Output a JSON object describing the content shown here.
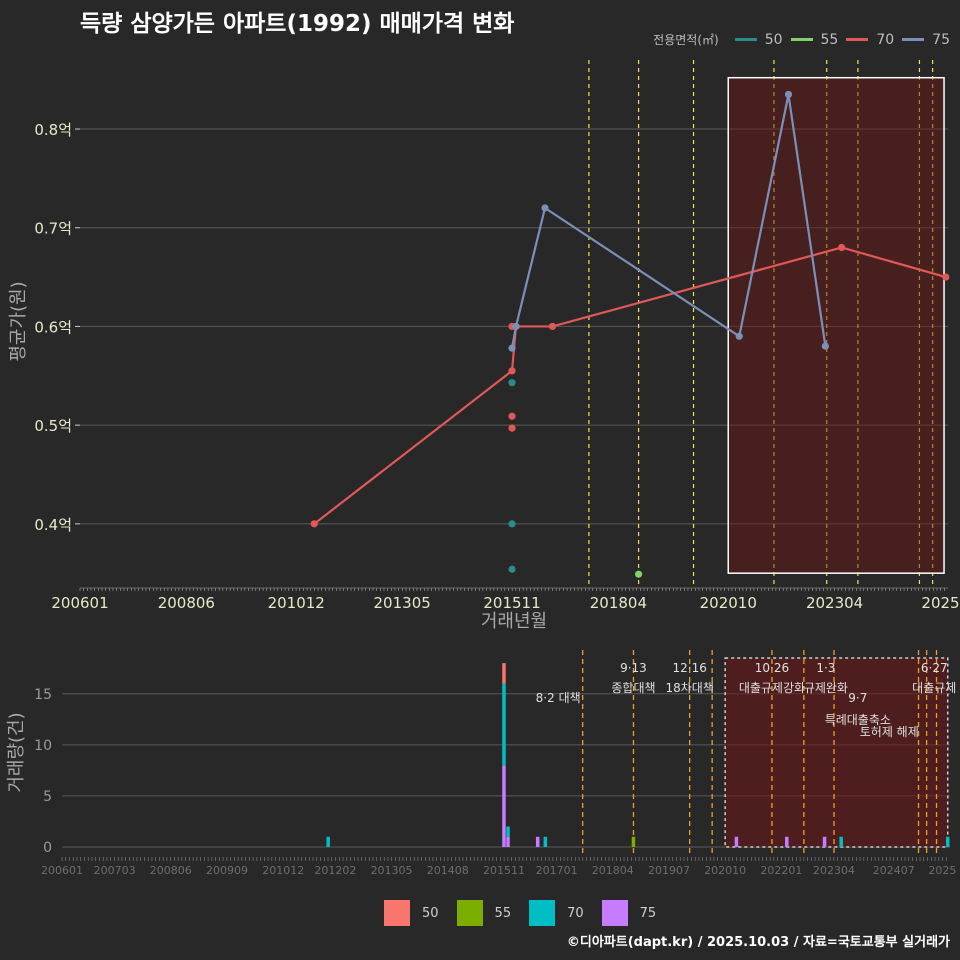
{
  "title": "득량 삼양가든 아파트(1992) 매매가격 변화",
  "footer": "©디아파트(dapt.kr) / 2025.10.03 / 자료=국토교통부 실거래가",
  "legend_top": {
    "title": "전용면적(㎡)",
    "items": [
      {
        "label": "50",
        "color": "#2a8c8c"
      },
      {
        "label": "55",
        "color": "#7fd46a"
      },
      {
        "label": "70",
        "color": "#e05858"
      },
      {
        "label": "75",
        "color": "#7a90b8"
      }
    ]
  },
  "legend_bottom": {
    "items": [
      {
        "label": "50",
        "color": "#f8766d"
      },
      {
        "label": "55",
        "color": "#7cae00"
      },
      {
        "label": "70",
        "color": "#00bfc4"
      },
      {
        "label": "75",
        "color": "#c77cff"
      }
    ]
  },
  "chart_data": [
    {
      "type": "line",
      "title": "득량 삼양가든 아파트(1992) 매매가격 변화",
      "xlabel": "거래년월",
      "ylabel": "평균가(원)",
      "xlim": [
        2006.0,
        2025.75
      ],
      "ylim": [
        0.335,
        0.875
      ],
      "yticks": [
        0.4,
        0.5,
        0.6,
        0.7,
        0.8
      ],
      "ytick_labels": [
        "0.4억",
        "0.5억",
        "0.6억",
        "0.7억",
        "0.8억"
      ],
      "xticks": [
        2006.0,
        2008.42,
        2010.92,
        2013.33,
        2015.83,
        2018.25,
        2020.75,
        2023.17,
        2025.58
      ],
      "xtick_labels": [
        "200601",
        "200806",
        "201012",
        "201305",
        "201511",
        "201804",
        "202010",
        "202304",
        "2025"
      ],
      "policy_lines": [
        2017.58,
        2018.71,
        2019.96,
        2021.79,
        2022.99,
        2023.7,
        2025.1,
        2025.4
      ],
      "highlight": {
        "x0": 2020.75,
        "x1": 2025.66,
        "y0": 0.35,
        "y1": 0.852
      },
      "series": [
        {
          "name": "50",
          "color": "#2a8c8c",
          "points": [
            [
              2015.83,
              0.354
            ],
            [
              2015.83,
              0.4
            ],
            [
              2015.83,
              0.543
            ]
          ],
          "line": false
        },
        {
          "name": "55",
          "color": "#7fd46a",
          "points": [
            [
              2018.71,
              0.349
            ]
          ],
          "line": false
        },
        {
          "name": "70",
          "color": "#e05858",
          "points": [
            [
              2011.33,
              0.4
            ],
            [
              2015.83,
              0.555
            ],
            [
              2015.92,
              0.6
            ],
            [
              2016.75,
              0.6
            ],
            [
              2023.33,
              0.68
            ],
            [
              2025.7,
              0.65
            ]
          ],
          "line": true,
          "extra_points": [
            [
              2015.83,
              0.497
            ],
            [
              2015.83,
              0.509
            ],
            [
              2015.83,
              0.6
            ]
          ]
        },
        {
          "name": "75",
          "color": "#7a90b8",
          "points": [
            [
              2015.83,
              0.578
            ],
            [
              2015.92,
              0.6
            ],
            [
              2016.58,
              0.72
            ],
            [
              2021.0,
              0.59
            ],
            [
              2022.12,
              0.835
            ],
            [
              2022.96,
              0.58
            ]
          ],
          "line": true
        }
      ]
    },
    {
      "type": "bar",
      "ylabel": "거래량(건)",
      "xlim": [
        2006.0,
        2025.75
      ],
      "ylim": [
        0,
        18.5
      ],
      "yticks": [
        0,
        5,
        10,
        15
      ],
      "ytick_labels": [
        "0",
        "5",
        "10",
        "15"
      ],
      "xticks": [
        2006.0,
        2007.17,
        2008.42,
        2009.67,
        2010.92,
        2012.08,
        2013.33,
        2014.58,
        2015.83,
        2017.0,
        2018.25,
        2019.5,
        2020.75,
        2022.0,
        2023.17,
        2024.5,
        2025.58
      ],
      "xtick_labels": [
        "200601",
        "200703",
        "200806",
        "200909",
        "201012",
        "201202",
        "201305",
        "201408",
        "201511",
        "201701",
        "201804",
        "201907",
        "202010",
        "202201",
        "202304",
        "202407",
        "2025"
      ],
      "stacks": [
        {
          "x": 2011.92,
          "values": {
            "50": 0,
            "55": 0,
            "70": 1,
            "75": 0
          }
        },
        {
          "x": 2015.83,
          "values": {
            "50": 2,
            "55": 0,
            "70": 8,
            "75": 8
          }
        },
        {
          "x": 2015.92,
          "values": {
            "50": 0,
            "55": 0,
            "70": 1,
            "75": 1
          }
        },
        {
          "x": 2016.58,
          "values": {
            "50": 0,
            "55": 0,
            "70": 0,
            "75": 1
          }
        },
        {
          "x": 2016.75,
          "values": {
            "50": 0,
            "55": 0,
            "70": 1,
            "75": 0
          }
        },
        {
          "x": 2018.71,
          "values": {
            "50": 0,
            "55": 1,
            "70": 0,
            "75": 0
          }
        },
        {
          "x": 2021.0,
          "values": {
            "50": 0,
            "55": 0,
            "70": 0,
            "75": 1
          }
        },
        {
          "x": 2022.12,
          "values": {
            "50": 0,
            "55": 0,
            "70": 0,
            "75": 1
          }
        },
        {
          "x": 2022.96,
          "values": {
            "50": 0,
            "55": 0,
            "70": 0,
            "75": 1
          }
        },
        {
          "x": 2023.33,
          "values": {
            "50": 0,
            "55": 0,
            "70": 1,
            "75": 0
          }
        },
        {
          "x": 2025.7,
          "values": {
            "50": 0,
            "55": 0,
            "70": 1,
            "75": 0
          }
        }
      ],
      "policy_lines": [
        2017.58,
        2018.71,
        2019.96,
        2020.46,
        2021.79,
        2022.5,
        2023.17,
        2025.05,
        2025.23,
        2025.45
      ],
      "highlight": {
        "x0": 2020.75,
        "x1": 2025.7,
        "y0": 0,
        "y1": 18.5
      },
      "annotations": [
        {
          "x": 2017.58,
          "line1": "8·2 대책",
          "line2": "",
          "anchor": "end",
          "row": 1
        },
        {
          "x": 2018.71,
          "line1": "9·13",
          "line2": "종합대책",
          "anchor": "middle",
          "row": 0
        },
        {
          "x": 2019.96,
          "line1": "12·16",
          "line2": "18차대책",
          "anchor": "middle",
          "row": 0
        },
        {
          "x": 2021.79,
          "line1": "10·26",
          "line2": "대출규제강화",
          "anchor": "middle",
          "row": 0
        },
        {
          "x": 2022.99,
          "line1": "1·3",
          "line2": "규제완화",
          "anchor": "middle",
          "row": 0
        },
        {
          "x": 2023.7,
          "line1": "9·7",
          "line2": "특례대출축소",
          "anchor": "middle",
          "row": 1
        },
        {
          "x": 2025.1,
          "line1": "",
          "line2": "토허제 해제",
          "anchor": "end",
          "row": 2
        },
        {
          "x": 2025.4,
          "line1": "6·27",
          "line2": "대출규제",
          "anchor": "middle",
          "row": 0
        }
      ]
    }
  ]
}
